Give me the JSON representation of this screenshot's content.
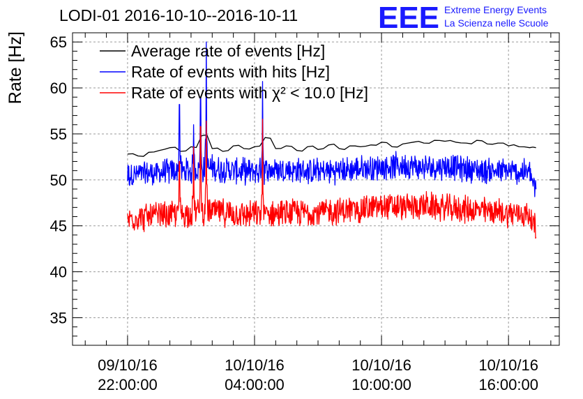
{
  "chart_data": {
    "type": "line",
    "title": "LODI-01 2016-10-10--2016-10-11",
    "ylabel": "Rate [Hz]",
    "xlabel": "",
    "ylim": [
      32,
      66
    ],
    "yticks": [
      35,
      40,
      45,
      50,
      55,
      60,
      65
    ],
    "xlim_hours": [
      -2.6,
      20.4
    ],
    "xticks": [
      {
        "hours": 0,
        "date": "09/10/16",
        "time": "22:00:00"
      },
      {
        "hours": 6,
        "date": "10/10/16",
        "time": "04:00:00"
      },
      {
        "hours": 12,
        "date": "10/10/16",
        "time": "10:00:00"
      },
      {
        "hours": 18,
        "date": "10/10/16",
        "time": "16:00:00"
      }
    ],
    "x_reference": "09/10/16 22:00:00",
    "grid": true,
    "legend": {
      "position": "top-left",
      "entries": [
        {
          "label": "Average rate of events [Hz]",
          "color": "#000000"
        },
        {
          "label": "Rate of events with hits [Hz]",
          "color": "#0000ff"
        },
        {
          "label": "Rate of events with χ² < 10.0 [Hz]",
          "color": "#ff0000"
        }
      ]
    },
    "series": [
      {
        "name": "Average rate of events [Hz]",
        "color": "#000000",
        "style": "smooth",
        "x_hours": [
          0.0,
          0.5,
          1.0,
          1.5,
          2.0,
          2.5,
          3.0,
          3.5,
          4.0,
          4.5,
          5.0,
          5.5,
          6.0,
          6.5,
          7.0,
          7.5,
          8.0,
          8.5,
          9.0,
          9.5,
          10.0,
          10.5,
          11.0,
          11.5,
          12.0,
          12.5,
          13.0,
          13.5,
          14.0,
          14.5,
          15.0,
          15.5,
          16.0,
          16.5,
          17.0,
          17.5,
          18.0,
          18.5,
          19.0,
          19.3
        ],
        "values": [
          52.8,
          52.6,
          53.0,
          53.2,
          53.5,
          53.1,
          53.6,
          54.8,
          53.4,
          53.1,
          53.7,
          53.4,
          53.6,
          54.6,
          53.4,
          53.7,
          53.2,
          53.6,
          53.3,
          53.8,
          53.4,
          53.7,
          53.6,
          53.8,
          54.1,
          53.6,
          53.9,
          54.1,
          54.0,
          54.3,
          54.2,
          54.1,
          54.0,
          54.3,
          53.9,
          54.0,
          53.7,
          53.6,
          53.5,
          53.5
        ]
      },
      {
        "name": "Rate of events with hits [Hz]",
        "color": "#0000ff",
        "style": "noisy",
        "noise": 1.6,
        "x_hours": [
          0.0,
          1.0,
          2.0,
          3.0,
          4.0,
          5.0,
          6.0,
          7.0,
          8.0,
          9.0,
          10.0,
          11.0,
          12.0,
          13.0,
          14.0,
          15.0,
          16.0,
          17.0,
          18.0,
          19.0,
          19.3
        ],
        "values": [
          50.5,
          50.7,
          50.9,
          51.0,
          51.3,
          51.0,
          50.9,
          51.1,
          51.0,
          50.9,
          51.0,
          51.2,
          51.4,
          51.6,
          51.3,
          51.5,
          51.2,
          51.0,
          50.9,
          50.8,
          48.6
        ],
        "spikes": [
          {
            "x_hours": 2.45,
            "value": 58.2
          },
          {
            "x_hours": 3.12,
            "value": 56.0
          },
          {
            "x_hours": 3.45,
            "value": 59.0
          },
          {
            "x_hours": 3.72,
            "value": 65.0
          },
          {
            "x_hours": 6.38,
            "value": 60.7
          }
        ]
      },
      {
        "name": "Rate of events with χ² < 10.0 [Hz]",
        "color": "#ff0000",
        "style": "noisy",
        "noise": 1.7,
        "x_hours": [
          0.0,
          1.0,
          2.0,
          3.0,
          4.0,
          5.0,
          6.0,
          7.0,
          8.0,
          9.0,
          10.0,
          11.0,
          12.0,
          13.0,
          14.0,
          15.0,
          16.0,
          17.0,
          18.0,
          19.0,
          19.3
        ],
        "values": [
          45.8,
          46.0,
          46.2,
          46.4,
          46.6,
          46.3,
          46.2,
          46.3,
          46.4,
          46.5,
          46.6,
          46.8,
          47.1,
          47.0,
          47.2,
          46.9,
          46.8,
          46.6,
          46.4,
          46.2,
          44.4
        ],
        "spikes": [
          {
            "x_hours": 2.45,
            "value": 52.0
          },
          {
            "x_hours": 3.12,
            "value": 53.6
          },
          {
            "x_hours": 3.45,
            "value": 55.8
          },
          {
            "x_hours": 3.72,
            "value": 56.4
          },
          {
            "x_hours": 6.38,
            "value": 56.6
          }
        ]
      }
    ]
  },
  "logo": {
    "mark": "EEE",
    "line1": "Extreme Energy Events",
    "line2": "La Scienza nelle Scuole",
    "color": "#1a1aff"
  }
}
